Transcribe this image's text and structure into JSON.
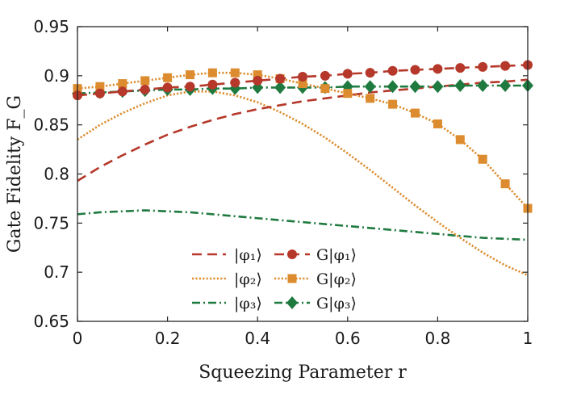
{
  "chart_data": {
    "type": "line",
    "xlabel": "Squeezing Parameter r",
    "ylabel": "Gate Fidelity F_G",
    "xlim": [
      0,
      1
    ],
    "ylim": [
      0.65,
      0.95
    ],
    "xticks": [
      0,
      0.2,
      0.4,
      0.6,
      0.8,
      1
    ],
    "xtick_labels": [
      "0",
      "0.2",
      "0.4",
      "0.6",
      "0.8",
      "1"
    ],
    "yticks": [
      0.65,
      0.7,
      0.75,
      0.8,
      0.85,
      0.9,
      0.95
    ],
    "ytick_labels": [
      "0.65",
      "0.7",
      "0.75",
      "0.8",
      "0.85",
      "0.9",
      "0.95"
    ],
    "grid": false,
    "legend_position": "bottom-center",
    "x": [
      0,
      0.05,
      0.1,
      0.15,
      0.2,
      0.25,
      0.3,
      0.35,
      0.4,
      0.45,
      0.5,
      0.55,
      0.6,
      0.65,
      0.7,
      0.75,
      0.8,
      0.85,
      0.9,
      0.95,
      1.0
    ],
    "series": [
      {
        "name": "|φ1⟩",
        "label": "|φ₁⟩",
        "style": "dashed",
        "marker": "none",
        "color": "#b5382a",
        "values": [
          0.793,
          0.807,
          0.819,
          0.83,
          0.84,
          0.848,
          0.855,
          0.861,
          0.866,
          0.87,
          0.874,
          0.877,
          0.88,
          0.883,
          0.885,
          0.887,
          0.889,
          0.891,
          0.893,
          0.894,
          0.896
        ]
      },
      {
        "name": "|φ2⟩",
        "label": "|φ₂⟩",
        "style": "dotted",
        "marker": "none",
        "color": "#dc8c2e",
        "values": [
          0.835,
          0.85,
          0.862,
          0.872,
          0.88,
          0.884,
          0.884,
          0.88,
          0.873,
          0.863,
          0.851,
          0.837,
          0.821,
          0.804,
          0.786,
          0.768,
          0.751,
          0.735,
          0.72,
          0.707,
          0.697
        ]
      },
      {
        "name": "|φ3⟩",
        "label": "|φ₃⟩",
        "style": "dashdot",
        "marker": "none",
        "color": "#1f7a3f",
        "values": [
          0.759,
          0.761,
          0.762,
          0.763,
          0.762,
          0.761,
          0.759,
          0.757,
          0.755,
          0.753,
          0.751,
          0.749,
          0.747,
          0.745,
          0.743,
          0.741,
          0.739,
          0.737,
          0.735,
          0.734,
          0.733
        ]
      },
      {
        "name": "G|φ1⟩",
        "label": "G|φ₁⟩",
        "style": "dashed",
        "marker": "circle",
        "color": "#b5382a",
        "values": [
          0.88,
          0.882,
          0.884,
          0.886,
          0.888,
          0.889,
          0.891,
          0.893,
          0.895,
          0.897,
          0.899,
          0.9,
          0.902,
          0.903,
          0.905,
          0.906,
          0.907,
          0.908,
          0.909,
          0.91,
          0.911
        ]
      },
      {
        "name": "G|φ2⟩",
        "label": "G|φ₂⟩",
        "style": "dotted",
        "marker": "square",
        "color": "#dc8c2e",
        "values": [
          0.887,
          0.889,
          0.892,
          0.895,
          0.898,
          0.901,
          0.903,
          0.903,
          0.901,
          0.897,
          0.892,
          0.887,
          0.882,
          0.877,
          0.871,
          0.862,
          0.851,
          0.835,
          0.815,
          0.79,
          0.765
        ]
      },
      {
        "name": "G|φ3⟩",
        "label": "G|φ₃⟩",
        "style": "dashdot",
        "marker": "diamond",
        "color": "#1f7a3f",
        "values": [
          0.882,
          0.883,
          0.884,
          0.885,
          0.886,
          0.886,
          0.887,
          0.887,
          0.888,
          0.888,
          0.888,
          0.888,
          0.889,
          0.889,
          0.889,
          0.889,
          0.889,
          0.89,
          0.89,
          0.89,
          0.89
        ]
      }
    ]
  }
}
